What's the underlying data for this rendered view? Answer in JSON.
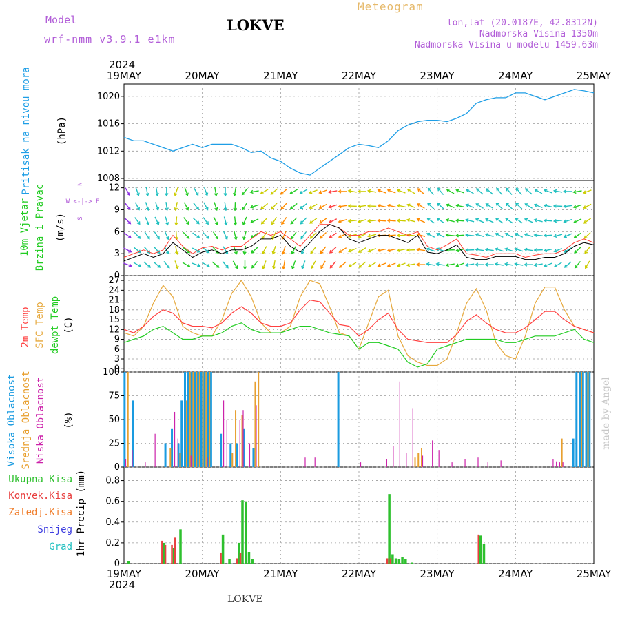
{
  "header": {
    "model_label": "Model",
    "model_name": "wrf-nmm_v3.9.1 e1km",
    "station": "LOKVE",
    "meteogram_label": "Meteogram",
    "lonlat": "lon,lat (20.0187E, 42.8312N)",
    "elevation": "Nadmorska Visina 1350m",
    "model_elevation": "Nadmorska Visina u modelu 1459.63m"
  },
  "footer": {
    "station": "LOKVE",
    "credit": "made by Angel"
  },
  "colors": {
    "pressure": "#1e9ee6",
    "wind_speed": "#000000",
    "wind_gust": "#ff3b30",
    "temp_2m": "#ff4040",
    "temp_sfc": "#e6a83c",
    "dewpoint": "#22cc22",
    "cloud_high": "#1a9be0",
    "cloud_mid": "#e8a030",
    "cloud_low": "#cc22aa",
    "precip_total": "#2ec02e",
    "precip_conv": "#e84040",
    "precip_frozen": "#f08030",
    "precip_snow": "#4040e0",
    "precip_hail": "#20c0c0",
    "credit": "#c8c8c8"
  },
  "x_axis": {
    "year": "2024",
    "dates": [
      "19MAY",
      "20MAY",
      "21MAY",
      "22MAY",
      "23MAY",
      "24MAY",
      "25MAY"
    ],
    "start": "2024-05-19T00:00",
    "end": "2024-05-25T00:00"
  },
  "panels": {
    "pressure": {
      "title": "Pritisak na nivou mora",
      "unit": "(hPa)",
      "ticks": [
        "1008",
        "1012",
        "1016",
        "1020"
      ],
      "ylim": [
        1007.7,
        1021.8
      ]
    },
    "wind": {
      "title_1": "10m Vjetar",
      "title_2": "Brzina i Pravac",
      "unit": "(m/s)",
      "compass_1": "N",
      "compass_2": "W <-|-> E",
      "compass_3": "S",
      "ticks": [
        "0",
        "3",
        "6",
        "9",
        "12"
      ],
      "ylim": [
        0,
        13
      ]
    },
    "temperature": {
      "title_1": "2m Temp",
      "title_2": "SFC Temp",
      "title_3": "dewpt Temp",
      "unit": "(C)",
      "ticks": [
        "0",
        "3",
        "6",
        "9",
        "12",
        "15",
        "18",
        "21",
        "24",
        "27"
      ],
      "ylim": [
        -1,
        28.5
      ]
    },
    "clouds": {
      "title_1": "Visoka Oblacnost",
      "title_2": "Srednja Oblacnost",
      "title_3": "Niska Oblacnost",
      "unit": "(%)",
      "ticks": [
        "0",
        "25",
        "50",
        "75",
        "100"
      ],
      "ylim": [
        0,
        100
      ]
    },
    "precip": {
      "legend": [
        "Ukupna Kisa",
        "Konvek.Kisa",
        "Zaledj.Kisa",
        "Snijeg",
        "Grad"
      ],
      "unit": "1hr Precip (mm)",
      "ticks": [
        "0",
        "0.2",
        "0.4",
        "0.6",
        "0.8"
      ],
      "ylim": [
        0,
        0.93
      ]
    }
  },
  "chart_data": {
    "type": "line",
    "time_unit": "hours since 2024-05-19T00:00",
    "x_range": [
      0,
      144
    ],
    "pressure": {
      "x": [
        0,
        3,
        6,
        9,
        12,
        15,
        18,
        21,
        24,
        27,
        30,
        33,
        36,
        39,
        42,
        45,
        48,
        51,
        54,
        57,
        60,
        63,
        66,
        69,
        72,
        75,
        78,
        81,
        84,
        87,
        90,
        93,
        96,
        99,
        102,
        105,
        108,
        111,
        114,
        117,
        120,
        123,
        126,
        129,
        132,
        135,
        138,
        141,
        144
      ],
      "y": [
        1014,
        1013.5,
        1013.5,
        1013,
        1012.5,
        1012,
        1012.5,
        1013,
        1012.5,
        1013,
        1013,
        1013,
        1012.5,
        1011.8,
        1012,
        1011,
        1010.5,
        1009.5,
        1008.8,
        1008.5,
        1009.5,
        1010.5,
        1011.5,
        1012.5,
        1013,
        1012.8,
        1012.5,
        1013.5,
        1015,
        1015.8,
        1016.3,
        1016.5,
        1016.5,
        1016.3,
        1016.8,
        1017.5,
        1019,
        1019.5,
        1019.8,
        1019.8,
        1020.5,
        1020.5,
        1020,
        1019.5,
        1020,
        1020.5,
        1021,
        1020.8,
        1020.5
      ]
    },
    "wind_speed": {
      "x": [
        0,
        3,
        6,
        9,
        12,
        15,
        18,
        21,
        24,
        27,
        30,
        33,
        36,
        39,
        42,
        45,
        48,
        51,
        54,
        57,
        60,
        63,
        66,
        69,
        72,
        75,
        78,
        81,
        84,
        87,
        90,
        93,
        96,
        99,
        102,
        105,
        108,
        111,
        114,
        117,
        120,
        123,
        126,
        129,
        132,
        135,
        138,
        141,
        144
      ],
      "y": [
        2,
        2.5,
        3,
        2.5,
        3,
        4.5,
        3.5,
        2.5,
        3.2,
        3.5,
        3,
        3.5,
        3.5,
        4,
        5,
        5,
        5.5,
        4,
        3.2,
        4.5,
        6,
        7,
        6.5,
        5,
        4.5,
        5,
        5.5,
        5.5,
        5,
        4.5,
        5.5,
        3.2,
        3,
        3.5,
        4.2,
        2.5,
        2.2,
        2.2,
        2.6,
        2.6,
        2.6,
        2.2,
        2.2,
        2.5,
        2.5,
        3,
        4,
        4.5,
        4.2
      ]
    },
    "wind_gust": {
      "x": [
        0,
        3,
        6,
        9,
        12,
        15,
        18,
        21,
        24,
        27,
        30,
        33,
        36,
        39,
        42,
        45,
        48,
        51,
        54,
        57,
        60,
        63,
        66,
        69,
        72,
        75,
        78,
        81,
        84,
        87,
        90,
        93,
        96,
        99,
        102,
        105,
        108,
        111,
        114,
        117,
        120,
        123,
        126,
        129,
        132,
        135,
        138,
        141,
        144
      ],
      "y": [
        2.5,
        3,
        3.5,
        3,
        3.5,
        5.5,
        4,
        3,
        3.8,
        4,
        3.5,
        4,
        4,
        5,
        6,
        5.5,
        6,
        5,
        4,
        5.5,
        7,
        7,
        6.5,
        5.5,
        5.5,
        6,
        6,
        6.5,
        6,
        5.5,
        6,
        4,
        3.5,
        4.2,
        5,
        3,
        2.8,
        2.5,
        3,
        3,
        3,
        2.5,
        2.8,
        3,
        3,
        3.5,
        4.5,
        5,
        4.5
      ]
    },
    "temp_2m": {
      "x": [
        0,
        3,
        6,
        9,
        12,
        15,
        18,
        21,
        24,
        27,
        30,
        33,
        36,
        39,
        42,
        45,
        48,
        51,
        54,
        57,
        60,
        63,
        66,
        69,
        72,
        75,
        78,
        81,
        84,
        87,
        90,
        93,
        96,
        99,
        102,
        105,
        108,
        111,
        114,
        117,
        120,
        123,
        126,
        129,
        132,
        135,
        138,
        141,
        144
      ],
      "y": [
        12,
        11,
        13,
        16,
        18,
        17,
        14,
        13,
        13,
        12.5,
        14,
        17,
        19,
        17,
        14,
        13,
        13,
        14,
        18,
        21,
        20.5,
        17,
        13.5,
        13,
        10,
        12,
        15,
        17,
        12,
        9,
        8.5,
        8,
        8,
        8,
        10.5,
        14.5,
        16.5,
        14,
        12,
        11,
        11,
        12.5,
        15,
        17.5,
        17.5,
        15,
        13,
        12,
        11
      ]
    },
    "temp_sfc": {
      "x": [
        0,
        3,
        6,
        9,
        12,
        15,
        18,
        21,
        24,
        27,
        30,
        33,
        36,
        39,
        42,
        45,
        48,
        51,
        54,
        57,
        60,
        63,
        66,
        69,
        72,
        75,
        78,
        81,
        84,
        87,
        90,
        93,
        96,
        99,
        102,
        105,
        108,
        111,
        114,
        117,
        120,
        123,
        126,
        129,
        132,
        135,
        138,
        141,
        144
      ],
      "y": [
        11,
        10,
        13,
        20,
        25.5,
        22,
        13,
        11,
        10,
        10,
        15,
        23,
        27,
        22,
        14,
        11,
        11,
        13,
        22,
        27,
        26,
        19,
        11,
        10,
        6,
        14,
        22,
        24,
        10,
        4,
        2,
        1,
        1,
        3,
        11,
        20,
        24.5,
        18,
        8,
        4,
        3,
        10,
        20,
        25,
        25,
        18,
        13,
        12,
        11
      ]
    },
    "dewpoint": {
      "x": [
        0,
        3,
        6,
        9,
        12,
        15,
        18,
        21,
        24,
        27,
        30,
        33,
        36,
        39,
        42,
        45,
        48,
        51,
        54,
        57,
        60,
        63,
        66,
        69,
        72,
        75,
        78,
        81,
        84,
        87,
        90,
        93,
        96,
        99,
        102,
        105,
        108,
        111,
        114,
        117,
        120,
        123,
        126,
        129,
        132,
        135,
        138,
        141,
        144
      ],
      "y": [
        8,
        9,
        10,
        12,
        13,
        11,
        9,
        9,
        10,
        10,
        11,
        13,
        14,
        12,
        11,
        11,
        11,
        12,
        13,
        13,
        12,
        11,
        10.5,
        10,
        6,
        8,
        8,
        7,
        6,
        2,
        0.5,
        1.5,
        6,
        7,
        8,
        9,
        9,
        9,
        9,
        8,
        8,
        9,
        10,
        10,
        10,
        11,
        12,
        9,
        8
      ]
    },
    "wind_barbs": {
      "x": [
        0,
        3,
        6,
        9,
        12,
        15,
        18,
        21,
        24,
        27,
        30,
        33,
        36,
        39,
        42,
        45,
        48,
        51,
        54,
        57,
        60,
        63,
        66,
        69,
        72,
        75,
        78,
        81,
        84,
        87,
        90,
        93,
        96,
        99,
        102,
        105,
        108,
        111,
        114,
        117,
        120,
        123,
        126,
        129,
        132,
        135,
        138,
        141
      ],
      "direction_deg": [
        110,
        120,
        130,
        130,
        140,
        160,
        120,
        110,
        120,
        130,
        140,
        150,
        180,
        220,
        200,
        190,
        190,
        200,
        200,
        210,
        210,
        220,
        230,
        240,
        230,
        240,
        250,
        250,
        250,
        260,
        270,
        280,
        280,
        260,
        250,
        260,
        270,
        270,
        280,
        280,
        280,
        270,
        260,
        250,
        240,
        230,
        220,
        210
      ],
      "speed": [
        2,
        2.5,
        3,
        2.5,
        3,
        4.5,
        3.5,
        2.5,
        3.2,
        3.5,
        3,
        3.5,
        3.5,
        4,
        5,
        5,
        5.5,
        4,
        3.2,
        4.5,
        6,
        7,
        6.5,
        5,
        4.5,
        5,
        5.5,
        5.5,
        5,
        4.5,
        5.5,
        3.2,
        3,
        3.5,
        4.2,
        2.5,
        2.2,
        2.2,
        2.6,
        2.6,
        2.6,
        2.2,
        2.2,
        2.5,
        2.5,
        3,
        4,
        4.5
      ]
    },
    "cloud_high": {
      "x": [
        0.5,
        3,
        13,
        15,
        17,
        18,
        19,
        20,
        21,
        22,
        23,
        24,
        25,
        26,
        27,
        30,
        33,
        35,
        37,
        40,
        66,
        138,
        139,
        140,
        141,
        142,
        143
      ],
      "y": [
        100,
        70,
        25,
        40,
        25,
        70,
        100,
        100,
        100,
        100,
        100,
        100,
        100,
        100,
        100,
        35,
        25,
        25,
        40,
        20,
        100,
        30,
        100,
        100,
        100,
        100,
        100
      ]
    },
    "cloud_mid": {
      "x": [
        1,
        14,
        17,
        19,
        20,
        21,
        22,
        23,
        24,
        25,
        26,
        33,
        34,
        36,
        40,
        41,
        89,
        90,
        91,
        134,
        140,
        142
      ],
      "y": [
        100,
        20,
        15,
        70,
        100,
        100,
        100,
        100,
        100,
        100,
        100,
        15,
        60,
        55,
        90,
        100,
        10,
        15,
        20,
        30,
        100,
        100
      ]
    },
    "cloud_low": {
      "x": [
        0,
        2,
        6,
        9,
        15,
        16,
        20,
        25,
        30,
        31,
        35,
        36,
        38,
        40,
        55,
        58,
        72,
        80,
        82,
        84,
        86,
        88,
        91,
        94,
        96,
        100,
        104,
        108,
        111,
        115,
        131,
        132,
        133,
        134
      ],
      "y": [
        8,
        18,
        5,
        35,
        58,
        30,
        12,
        10,
        70,
        50,
        50,
        60,
        25,
        65,
        10,
        10,
        5,
        8,
        22,
        90,
        15,
        62,
        12,
        28,
        18,
        5,
        8,
        10,
        5,
        7,
        8,
        6,
        5,
        5
      ]
    },
    "precip_total": {
      "x": [
        1,
        12,
        15,
        17,
        30,
        32,
        35,
        36,
        37,
        38,
        39,
        81,
        82,
        83,
        84,
        85,
        86,
        88,
        109,
        110
      ],
      "y": [
        0.02,
        0.2,
        0.15,
        0.33,
        0.28,
        0.04,
        0.2,
        0.61,
        0.6,
        0.11,
        0.04,
        0.67,
        0.09,
        0.05,
        0.04,
        0.06,
        0.04,
        0.01,
        0.27,
        0.19
      ]
    },
    "precip_conv": {
      "x": [
        12,
        13,
        15,
        16,
        30,
        35,
        36,
        81,
        82,
        109
      ],
      "y": [
        0.22,
        0.18,
        0.18,
        0.25,
        0.1,
        0.05,
        0.1,
        0.05,
        0.05,
        0.28
      ]
    }
  }
}
